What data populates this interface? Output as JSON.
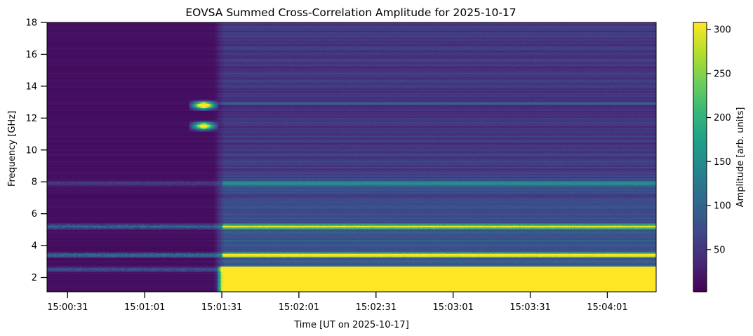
{
  "chart_data": {
    "type": "heatmap",
    "title": "EOVSA Summed Cross-Correlation Amplitude for 2025-10-17",
    "xlabel": "Time [UT on 2025-10-17]",
    "ylabel": "Frequency [GHz]",
    "colorbar_label": "Amplitude [arb. units]",
    "colormap": "viridis",
    "x_ticks": [
      "15:00:31",
      "15:01:01",
      "15:01:31",
      "15:02:01",
      "15:02:31",
      "15:03:01",
      "15:03:31",
      "15:04:01"
    ],
    "x_range": [
      "15:00:23",
      "15:04:20"
    ],
    "y_ticks": [
      2,
      4,
      6,
      8,
      10,
      12,
      14,
      16,
      18
    ],
    "ylim": [
      1.1,
      18
    ],
    "clim": [
      2,
      308
    ],
    "colorbar_ticks": [
      50,
      100,
      150,
      200,
      250,
      300
    ],
    "flare_onset": "15:01:31",
    "features": [
      {
        "kind": "pre-flare burst",
        "time": "15:01:24",
        "freq_ghz": 12.8,
        "amplitude": 300
      },
      {
        "kind": "pre-flare burst",
        "time": "15:01:24",
        "freq_ghz": 11.5,
        "amplitude": 260
      },
      {
        "kind": "rfi band",
        "freq_ghz": 5.2,
        "amplitude": 240
      },
      {
        "kind": "rfi band",
        "freq_ghz": 3.4,
        "amplitude": 280
      },
      {
        "kind": "rfi band",
        "freq_ghz": 7.9,
        "amplitude": 130
      },
      {
        "kind": "rfi band",
        "freq_ghz": 2.5,
        "amplitude": 180
      },
      {
        "kind": "flare continuum",
        "time_start": "15:01:31",
        "freq_range_ghz": [
          1.1,
          2.7
        ],
        "amplitude": 308
      }
    ]
  }
}
